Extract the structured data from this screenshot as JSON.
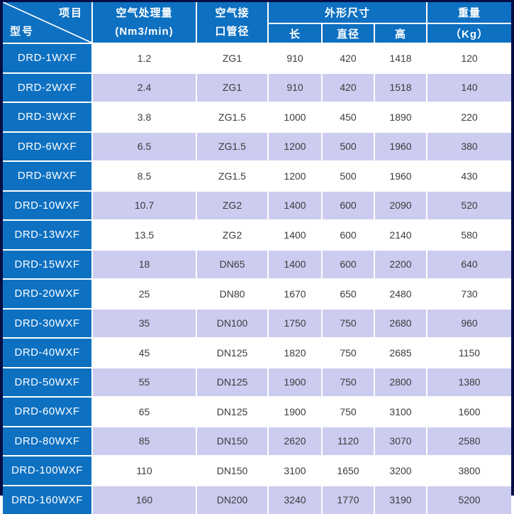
{
  "table": {
    "corner": {
      "top_right": "项目",
      "bottom_left": "型号"
    },
    "header": {
      "air_capacity_line1": "空气处理量",
      "air_capacity_line2": "(Nm3/min)",
      "pipe_line1": "空气接",
      "pipe_line2": "口管径",
      "dimensions": "外形尺寸",
      "length": "长",
      "diameter": "直径",
      "height": "高",
      "weight": "重量",
      "weight_unit": "（Kg）"
    },
    "rows": [
      {
        "model": "DRD-1WXF",
        "capacity": "1.2",
        "pipe": "ZG1",
        "length": "910",
        "diameter": "420",
        "height": "1418",
        "weight": "120"
      },
      {
        "model": "DRD-2WXF",
        "capacity": "2.4",
        "pipe": "ZG1",
        "length": "910",
        "diameter": "420",
        "height": "1518",
        "weight": "140"
      },
      {
        "model": "DRD-3WXF",
        "capacity": "3.8",
        "pipe": "ZG1.5",
        "length": "1000",
        "diameter": "450",
        "height": "1890",
        "weight": "220"
      },
      {
        "model": "DRD-6WXF",
        "capacity": "6.5",
        "pipe": "ZG1.5",
        "length": "1200",
        "diameter": "500",
        "height": "1960",
        "weight": "380"
      },
      {
        "model": "DRD-8WXF",
        "capacity": "8.5",
        "pipe": "ZG1.5",
        "length": "1200",
        "diameter": "500",
        "height": "1960",
        "weight": "430"
      },
      {
        "model": "DRD-10WXF",
        "capacity": "10.7",
        "pipe": "ZG2",
        "length": "1400",
        "diameter": "600",
        "height": "2090",
        "weight": "520"
      },
      {
        "model": "DRD-13WXF",
        "capacity": "13.5",
        "pipe": "ZG2",
        "length": "1400",
        "diameter": "600",
        "height": "2140",
        "weight": "580"
      },
      {
        "model": "DRD-15WXF",
        "capacity": "18",
        "pipe": "DN65",
        "length": "1400",
        "diameter": "600",
        "height": "2200",
        "weight": "640"
      },
      {
        "model": "DRD-20WXF",
        "capacity": "25",
        "pipe": "DN80",
        "length": "1670",
        "diameter": "650",
        "height": "2480",
        "weight": "730"
      },
      {
        "model": "DRD-30WXF",
        "capacity": "35",
        "pipe": "DN100",
        "length": "1750",
        "diameter": "750",
        "height": "2680",
        "weight": "960"
      },
      {
        "model": "DRD-40WXF",
        "capacity": "45",
        "pipe": "DN125",
        "length": "1820",
        "diameter": "750",
        "height": "2685",
        "weight": "1150"
      },
      {
        "model": "DRD-50WXF",
        "capacity": "55",
        "pipe": "DN125",
        "length": "1900",
        "diameter": "750",
        "height": "2800",
        "weight": "1380"
      },
      {
        "model": "DRD-60WXF",
        "capacity": "65",
        "pipe": "DN125",
        "length": "1900",
        "diameter": "750",
        "height": "3100",
        "weight": "1600"
      },
      {
        "model": "DRD-80WXF",
        "capacity": "85",
        "pipe": "DN150",
        "length": "2620",
        "diameter": "1120",
        "height": "3070",
        "weight": "2580"
      },
      {
        "model": "DRD-100WXF",
        "capacity": "110",
        "pipe": "DN150",
        "length": "3100",
        "diameter": "1650",
        "height": "3200",
        "weight": "3800"
      },
      {
        "model": "DRD-160WXF",
        "capacity": "160",
        "pipe": "DN200",
        "length": "3240",
        "diameter": "1770",
        "height": "3190",
        "weight": "5200"
      }
    ]
  },
  "colors": {
    "header_blue": "#0d70c1",
    "row_purple": "#ccccf0",
    "row_white": "#ffffff",
    "frame_dark_navy": "#020d45",
    "grid_white": "#ffffff",
    "data_text": "#3c3c3c",
    "header_text": "#ffffff"
  }
}
